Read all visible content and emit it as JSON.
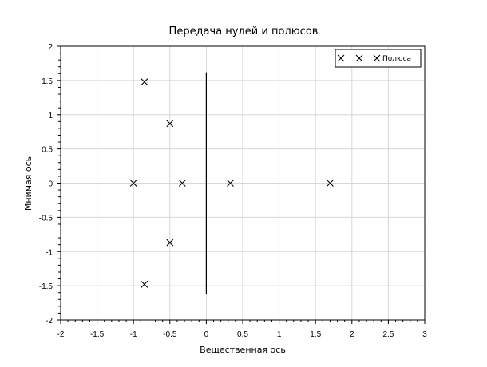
{
  "chart_data": {
    "type": "scatter",
    "title": "Передача нулей и полюсов",
    "xlabel": "Вещественная ось",
    "ylabel": "Мнимая ось",
    "xlim": [
      -2,
      3
    ],
    "ylim": [
      -2,
      2
    ],
    "x_ticks": [
      "-2",
      "-1.5",
      "-1",
      "-0.5",
      "0",
      "0.5",
      "1",
      "1.5",
      "2",
      "2.5",
      "3"
    ],
    "y_ticks": [
      "2",
      "1.5",
      "1",
      "0.5",
      "0",
      "-0.5",
      "-1",
      "-1.5",
      "-2"
    ],
    "grid": true,
    "legend_position": "top-right",
    "series": [
      {
        "name": "Полюса",
        "marker": "x",
        "color": "#000000",
        "points": [
          {
            "x": -0.85,
            "y": 1.48
          },
          {
            "x": -0.5,
            "y": 0.87
          },
          {
            "x": -1.0,
            "y": 0.0
          },
          {
            "x": -0.33,
            "y": 0.0
          },
          {
            "x": 0.33,
            "y": 0.0
          },
          {
            "x": 1.7,
            "y": 0.0
          },
          {
            "x": -0.5,
            "y": -0.87
          },
          {
            "x": -0.85,
            "y": -1.48
          }
        ]
      }
    ],
    "segments": [
      {
        "x1": 0.0,
        "y1": 1.62,
        "x2": 0.0,
        "y2": -1.62
      }
    ]
  }
}
